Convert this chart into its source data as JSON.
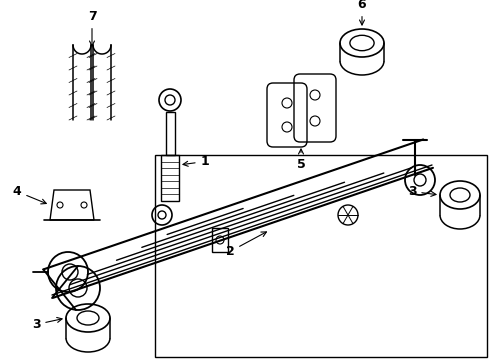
{
  "background_color": "#ffffff",
  "line_color": "#000000",
  "line_width": 1.0,
  "figsize": [
    4.9,
    3.6
  ],
  "dpi": 100,
  "xlim": [
    0,
    490
  ],
  "ylim": [
    0,
    360
  ]
}
